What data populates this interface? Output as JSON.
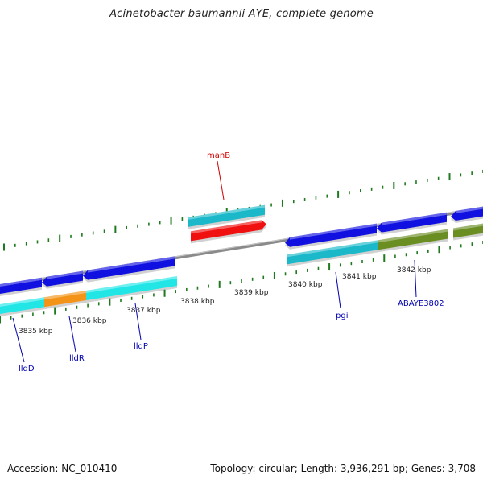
{
  "header": {
    "title": "Acinetobacter baumannii AYE, complete genome"
  },
  "footer": {
    "accession": "Accession: NC_010410",
    "summary": "Topology: circular; Length: 3,936,291 bp; Genes: 3,708"
  },
  "scale": {
    "unit": "kbp",
    "ticks": [
      {
        "text": "3835 kbp"
      },
      {
        "text": "3836 kbp"
      },
      {
        "text": "3837 kbp"
      },
      {
        "text": "3838 kbp"
      },
      {
        "text": "3839 kbp"
      },
      {
        "text": "3840 kbp"
      },
      {
        "text": "3841 kbp"
      },
      {
        "text": "3842 kbp"
      }
    ]
  },
  "genes": [
    {
      "name": "lldD",
      "label_color": "#0000b0"
    },
    {
      "name": "lldR",
      "label_color": "#0000b0"
    },
    {
      "name": "lldP",
      "label_color": "#0000b0"
    },
    {
      "name": "manB",
      "label_color": "#d00000"
    },
    {
      "name": "pgi",
      "label_color": "#0000b0"
    },
    {
      "name": "ABAYE3802",
      "label_color": "#0000b0"
    }
  ],
  "colors": {
    "backbone": "#8a8a8a",
    "tick": "#1f7a1f",
    "cds_blue": "#1010e0",
    "cds_cyan": "#22e6e6",
    "cds_orange": "#f39418",
    "cds_teal": "#1ab8c8",
    "cds_red": "#f01010",
    "cds_olive": "#6b8e23"
  }
}
